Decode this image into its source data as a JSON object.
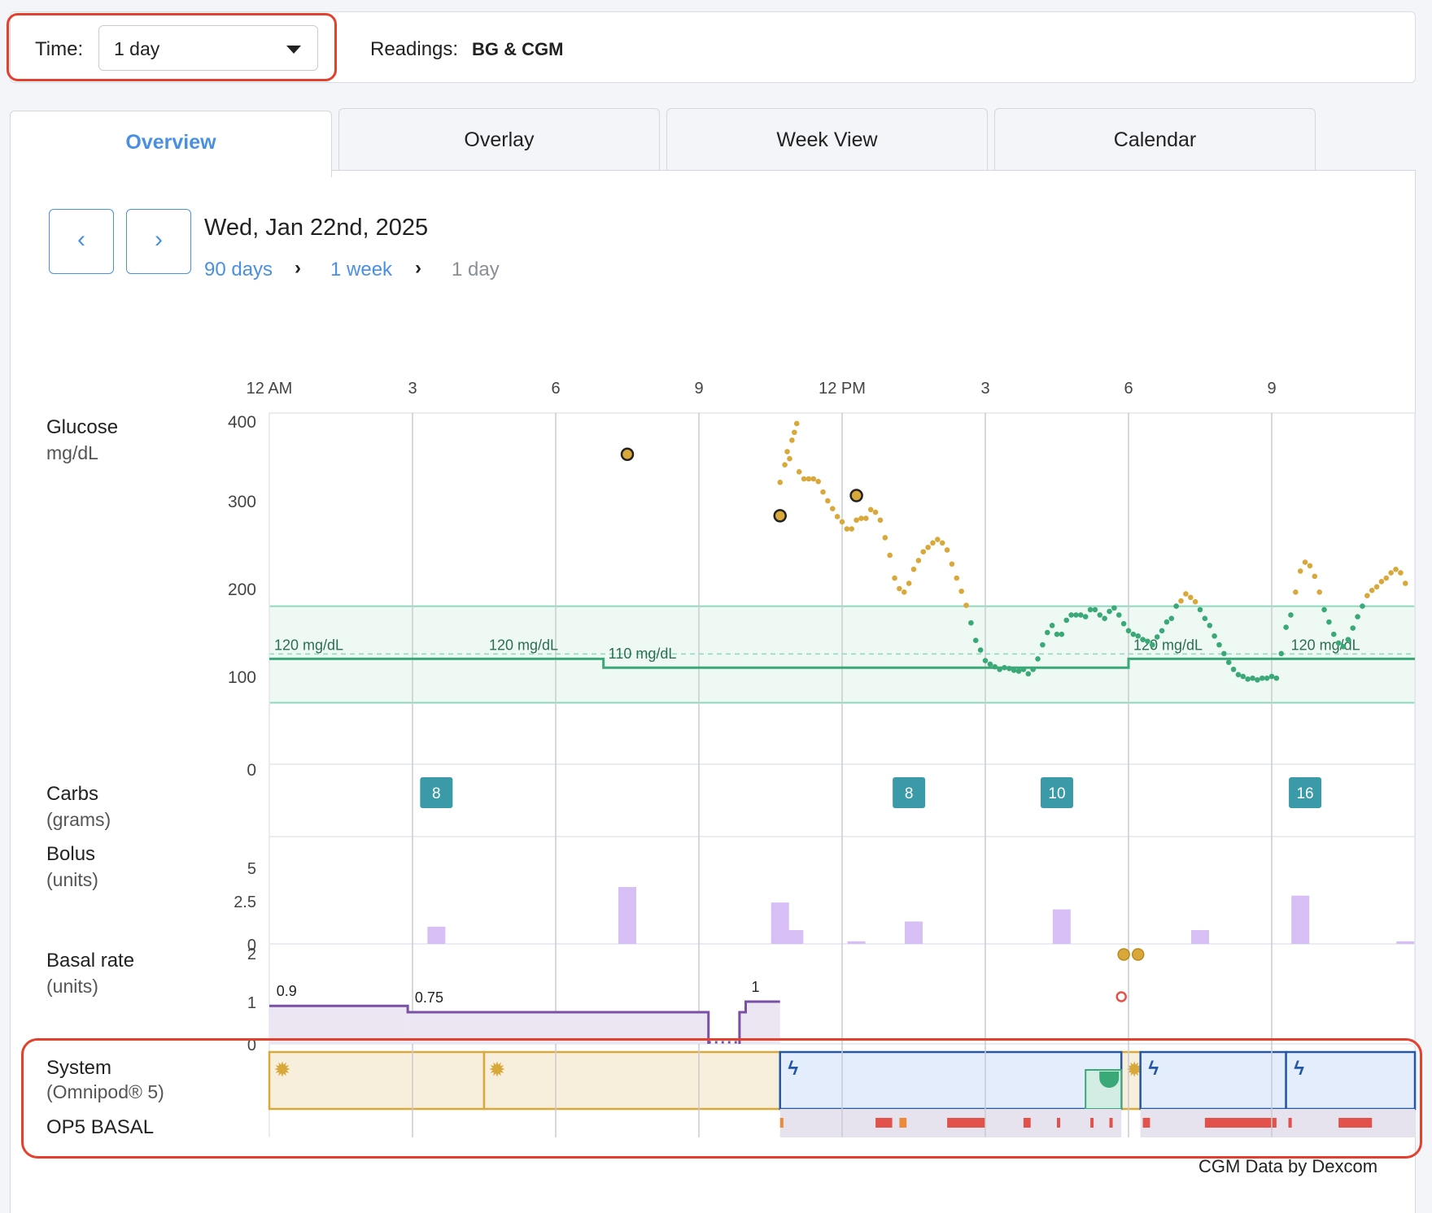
{
  "topbar": {
    "time_label": "Time:",
    "time_value": "1 day",
    "readings_label": "Readings:",
    "readings_value": "BG & CGM"
  },
  "tabs": [
    {
      "label": "Overview",
      "active": true
    },
    {
      "label": "Overlay",
      "active": false
    },
    {
      "label": "Week View",
      "active": false
    },
    {
      "label": "Calendar",
      "active": false
    }
  ],
  "nav": {
    "prev": "‹",
    "next": "›",
    "date": "Wed, Jan 22nd, 2025",
    "breadcrumb": [
      "90 days",
      "1 week",
      "1 day"
    ]
  },
  "rows": {
    "glucose": {
      "title": "Glucose",
      "unit": "mg/dL"
    },
    "carbs": {
      "title": "Carbs",
      "unit": "(grams)"
    },
    "bolus": {
      "title": "Bolus",
      "unit": "(units)"
    },
    "basal": {
      "title": "Basal rate",
      "unit": "(units)"
    },
    "system": {
      "title": "System",
      "unit": "(Omnipod® 5)"
    },
    "op5": {
      "title": "OP5 BASAL"
    }
  },
  "credit": "CGM Data by Dexcom",
  "colors": {
    "accent": "#4a90e2",
    "cgm_high": "#d9a83a",
    "cgm_in_range": "#3aa877",
    "target_band": "#eef9f4",
    "carbs": "#3a9aa8",
    "bolus": "#d7bff5",
    "basal_line": "#7a4fa6",
    "basal_fill": "#ece6f3",
    "manual_mode": "#f7efdc",
    "auto_mode": "#e3edfb",
    "highlight": "#e3402d"
  },
  "chart_data": {
    "type": "timeline",
    "x_ticks": [
      "12 AM",
      "3",
      "6",
      "9",
      "12 PM",
      "3",
      "6",
      "9"
    ],
    "x_range_hours": [
      0,
      24
    ],
    "glucose": {
      "y_ticks": [
        400,
        300,
        200,
        100
      ],
      "ylim": [
        0,
        400
      ],
      "target_range": [
        70,
        180
      ],
      "target_labels": [
        {
          "start_h": 0,
          "text": "120 mg/dL",
          "value": 120
        },
        {
          "start_h": 4.5,
          "text": "120 mg/dL",
          "value": 120
        },
        {
          "start_h": 7,
          "text": "110 mg/dL",
          "value": 110
        },
        {
          "start_h": 18,
          "text": "120 mg/dL",
          "value": 120
        },
        {
          "start_h": 21.3,
          "text": "120 mg/dL",
          "value": 120
        }
      ],
      "target_steps": [
        {
          "start_h": 0,
          "end_h": 7,
          "value": 120
        },
        {
          "start_h": 7,
          "end_h": 18,
          "value": 110
        },
        {
          "start_h": 18,
          "end_h": 24,
          "value": 120
        }
      ],
      "bg_readings": [
        {
          "h": 7.5,
          "value": 353
        },
        {
          "h": 10.7,
          "value": 283
        },
        {
          "h": 12.3,
          "value": 306
        }
      ],
      "cgm": [
        [
          10.7,
          321
        ],
        [
          10.8,
          341
        ],
        [
          10.85,
          356
        ],
        [
          10.9,
          348
        ],
        [
          10.95,
          369
        ],
        [
          11.0,
          378
        ],
        [
          11.05,
          388
        ],
        [
          11.1,
          333
        ],
        [
          11.2,
          325
        ],
        [
          11.3,
          325
        ],
        [
          11.4,
          325
        ],
        [
          11.5,
          322
        ],
        [
          11.6,
          310
        ],
        [
          11.7,
          300
        ],
        [
          11.8,
          291
        ],
        [
          11.9,
          282
        ],
        [
          12.0,
          276
        ],
        [
          12.1,
          268
        ],
        [
          12.2,
          268
        ],
        [
          12.3,
          278
        ],
        [
          12.4,
          280
        ],
        [
          12.5,
          280
        ],
        [
          12.6,
          290
        ],
        [
          12.7,
          287
        ],
        [
          12.8,
          278
        ],
        [
          12.9,
          258
        ],
        [
          13.0,
          238
        ],
        [
          13.1,
          212
        ],
        [
          13.2,
          200
        ],
        [
          13.3,
          196
        ],
        [
          13.4,
          206
        ],
        [
          13.5,
          222
        ],
        [
          13.6,
          232
        ],
        [
          13.7,
          242
        ],
        [
          13.8,
          247
        ],
        [
          13.9,
          252
        ],
        [
          14.0,
          256
        ],
        [
          14.1,
          252
        ],
        [
          14.2,
          244
        ],
        [
          14.3,
          228
        ],
        [
          14.4,
          212
        ],
        [
          14.5,
          197
        ],
        [
          14.6,
          181
        ],
        [
          14.7,
          161
        ],
        [
          14.8,
          141
        ],
        [
          14.9,
          130
        ],
        [
          15.0,
          118
        ],
        [
          15.1,
          114
        ],
        [
          15.2,
          111
        ],
        [
          15.3,
          108
        ],
        [
          15.4,
          110
        ],
        [
          15.5,
          109
        ],
        [
          15.6,
          107
        ],
        [
          15.7,
          106
        ],
        [
          15.8,
          108
        ],
        [
          15.9,
          103
        ],
        [
          16.0,
          108
        ],
        [
          16.1,
          120
        ],
        [
          16.2,
          136
        ],
        [
          16.3,
          150
        ],
        [
          16.4,
          158
        ],
        [
          16.5,
          148
        ],
        [
          16.6,
          148
        ],
        [
          16.7,
          164
        ],
        [
          16.8,
          170
        ],
        [
          16.9,
          170
        ],
        [
          17.0,
          170
        ],
        [
          17.1,
          168
        ],
        [
          17.2,
          176
        ],
        [
          17.3,
          176
        ],
        [
          17.4,
          170
        ],
        [
          17.5,
          166
        ],
        [
          17.6,
          174
        ],
        [
          17.7,
          178
        ],
        [
          17.8,
          170
        ],
        [
          17.9,
          160
        ],
        [
          18.0,
          152
        ],
        [
          18.1,
          148
        ],
        [
          18.2,
          146
        ],
        [
          18.3,
          142
        ],
        [
          18.4,
          140
        ],
        [
          18.5,
          136
        ],
        [
          18.6,
          145
        ],
        [
          18.7,
          152
        ],
        [
          18.8,
          162
        ],
        [
          18.9,
          166
        ],
        [
          19.0,
          180
        ],
        [
          19.1,
          186
        ],
        [
          19.2,
          194
        ],
        [
          19.3,
          190
        ],
        [
          19.4,
          185
        ],
        [
          19.5,
          176
        ],
        [
          19.6,
          166
        ],
        [
          19.7,
          158
        ],
        [
          19.8,
          146
        ],
        [
          19.9,
          136
        ],
        [
          20.0,
          126
        ],
        [
          20.1,
          116
        ],
        [
          20.2,
          108
        ],
        [
          20.3,
          102
        ],
        [
          20.4,
          100
        ],
        [
          20.5,
          97
        ],
        [
          20.6,
          98
        ],
        [
          20.7,
          96
        ],
        [
          20.8,
          98
        ],
        [
          20.9,
          98
        ],
        [
          21.0,
          100
        ],
        [
          21.1,
          98
        ],
        [
          21.2,
          126
        ],
        [
          21.3,
          156
        ],
        [
          21.4,
          170
        ],
        [
          21.5,
          196
        ],
        [
          21.6,
          220
        ],
        [
          21.7,
          230
        ],
        [
          21.8,
          226
        ],
        [
          21.9,
          214
        ],
        [
          22.0,
          196
        ],
        [
          22.1,
          176
        ],
        [
          22.2,
          162
        ],
        [
          22.3,
          148
        ],
        [
          22.4,
          138
        ],
        [
          22.5,
          134
        ],
        [
          22.6,
          142
        ],
        [
          22.7,
          155
        ],
        [
          22.8,
          168
        ],
        [
          22.9,
          180
        ],
        [
          23.0,
          192
        ],
        [
          23.1,
          198
        ],
        [
          23.2,
          202
        ],
        [
          23.3,
          208
        ],
        [
          23.4,
          212
        ],
        [
          23.5,
          218
        ],
        [
          23.6,
          222
        ],
        [
          23.7,
          218
        ],
        [
          23.8,
          206
        ]
      ]
    },
    "carbs": [
      {
        "h": 3.5,
        "grams": 8
      },
      {
        "h": 13.4,
        "grams": 8
      },
      {
        "h": 16.5,
        "grams": 10
      },
      {
        "h": 21.7,
        "grams": 16
      }
    ],
    "bolus": {
      "y_ticks": [
        5,
        2.5,
        0
      ],
      "ylim": [
        0,
        5
      ],
      "values": [
        {
          "h": 3.5,
          "units": 1.0
        },
        {
          "h": 7.5,
          "units": 3.3
        },
        {
          "h": 10.7,
          "units": 2.4
        },
        {
          "h": 11.0,
          "units": 0.8
        },
        {
          "h": 12.3,
          "units": 0.15
        },
        {
          "h": 13.5,
          "units": 1.3
        },
        {
          "h": 16.6,
          "units": 2.0
        },
        {
          "h": 19.5,
          "units": 0.8
        },
        {
          "h": 21.6,
          "units": 2.8
        },
        {
          "h": 23.8,
          "units": 0.15
        }
      ]
    },
    "basal": {
      "y_ticks": [
        2,
        1,
        0
      ],
      "ylim": [
        0,
        2
      ],
      "labels": [
        {
          "h": 0.15,
          "text": "0.9",
          "value": 0.9
        },
        {
          "h": 3.05,
          "text": "0.75",
          "value": 0.75
        },
        {
          "h": 10.1,
          "text": "1",
          "value": 1
        }
      ],
      "steps": [
        {
          "start_h": 0,
          "end_h": 2.9,
          "rate": 0.9
        },
        {
          "start_h": 2.9,
          "end_h": 9.2,
          "rate": 0.75
        },
        {
          "start_h": 9.85,
          "end_h": 9.98,
          "rate": 0.75
        },
        {
          "start_h": 9.98,
          "end_h": 10.7,
          "rate": 1.0
        }
      ],
      "suspend": {
        "start_h": 9.2,
        "end_h": 9.85
      }
    },
    "system": {
      "manual_segments": [
        {
          "start_h": 0,
          "end_h": 4.5
        },
        {
          "start_h": 4.5,
          "end_h": 10.7
        },
        {
          "start_h": 17.85,
          "end_h": 18.25
        }
      ],
      "automated_segments": [
        {
          "start_h": 10.7,
          "end_h": 17.85
        },
        {
          "start_h": 18.25,
          "end_h": 21.3
        },
        {
          "start_h": 21.3,
          "end_h": 24
        }
      ],
      "pod_change": {
        "start_h": 17.1,
        "end_h": 17.85
      }
    },
    "op5_basal": {
      "band": [
        {
          "start_h": 10.7,
          "end_h": 17.85
        },
        {
          "start_h": 18.25,
          "end_h": 24
        }
      ],
      "marks": [
        {
          "start_h": 10.7,
          "end_h": 10.77,
          "kind": "orange"
        },
        {
          "start_h": 12.7,
          "end_h": 13.05,
          "kind": "red"
        },
        {
          "start_h": 13.2,
          "end_h": 13.35,
          "kind": "orange"
        },
        {
          "start_h": 14.2,
          "end_h": 15.0,
          "kind": "red"
        },
        {
          "start_h": 15.8,
          "end_h": 15.95,
          "kind": "red"
        },
        {
          "start_h": 16.5,
          "end_h": 16.55,
          "kind": "red"
        },
        {
          "start_h": 17.2,
          "end_h": 17.25,
          "kind": "red"
        },
        {
          "start_h": 17.6,
          "end_h": 17.65,
          "kind": "red"
        },
        {
          "start_h": 18.3,
          "end_h": 18.45,
          "kind": "red"
        },
        {
          "start_h": 19.6,
          "end_h": 21.1,
          "kind": "red"
        },
        {
          "start_h": 21.35,
          "end_h": 21.42,
          "kind": "red"
        },
        {
          "start_h": 22.4,
          "end_h": 23.1,
          "kind": "red"
        }
      ]
    }
  }
}
